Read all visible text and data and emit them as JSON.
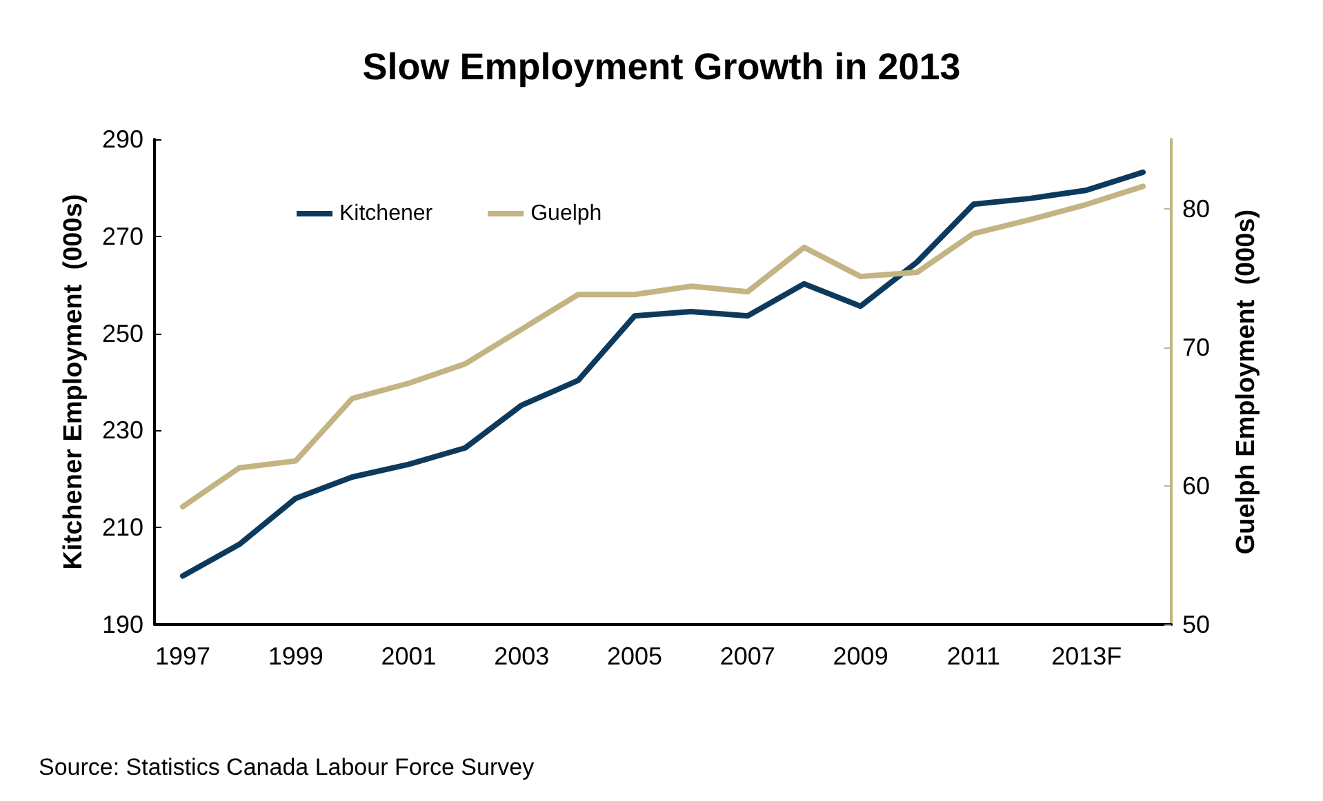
{
  "chart_data": {
    "type": "line",
    "title": "Slow Employment Growth in 2013",
    "ylabel": "Kitchener Employment  (000s)",
    "y2label": "Guelph Employment  (000s)",
    "categories": [
      "1997",
      null,
      "1999",
      null,
      "2001",
      null,
      "2003",
      null,
      "2005",
      null,
      "2007",
      null,
      "2009",
      null,
      "2011",
      null,
      "2013F",
      null
    ],
    "series": [
      {
        "name": "Kitchener",
        "color": "#0d3a5c",
        "values": [
          200,
          206.5,
          216,
          220.4,
          223,
          226.4,
          235.2,
          240.3,
          253.6,
          254.5,
          253.6,
          260.2,
          255.6,
          264.7,
          276.6,
          277.8,
          279.5,
          283.2
        ]
      },
      {
        "name": "Guelph",
        "color": "#c4b483",
        "axis": "y2",
        "values": [
          58.5,
          61.3,
          61.8,
          66.3,
          67.4,
          68.8,
          71.3,
          73.8,
          73.8,
          74.4,
          74.0,
          77.2,
          75.1,
          75.4,
          78.2,
          79.2,
          80.3,
          81.6
        ]
      }
    ],
    "ylim": [
      190,
      290
    ],
    "yticks": [
      190,
      210,
      230,
      250,
      270,
      290
    ],
    "y2lim": [
      50,
      85
    ],
    "y2ticks": [
      50,
      60,
      70,
      80
    ],
    "legend": "top left",
    "grid": false,
    "marker": "none",
    "line_style": "solid",
    "annotations": [
      "Source: Statistics Canada Labour Force Survey"
    ]
  }
}
